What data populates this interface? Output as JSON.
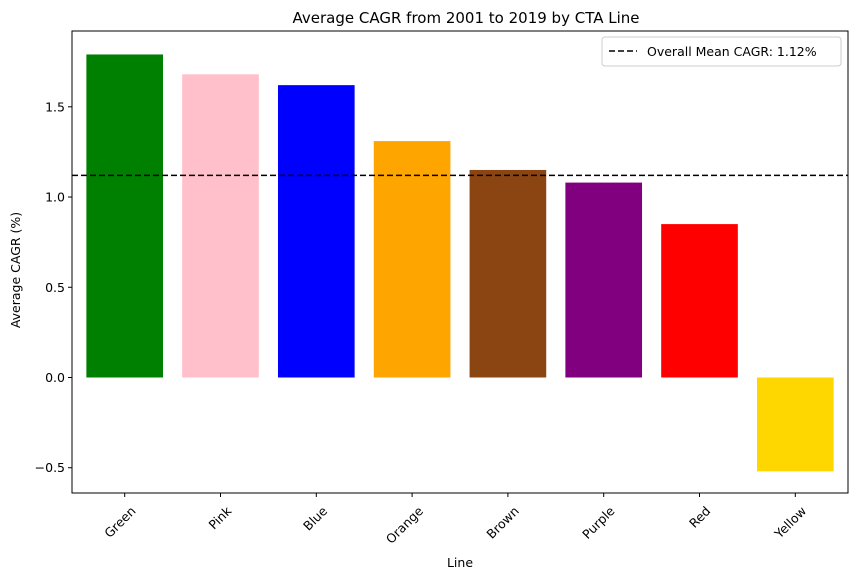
{
  "chart_data": {
    "type": "bar",
    "title": "Average CAGR from 2001 to 2019 by CTA Line",
    "xlabel": "Line",
    "ylabel": "Average CAGR (%)",
    "categories": [
      "Green",
      "Pink",
      "Blue",
      "Orange",
      "Brown",
      "Purple",
      "Red",
      "Yellow"
    ],
    "values": [
      1.79,
      1.68,
      1.62,
      1.31,
      1.15,
      1.08,
      0.85,
      -0.52
    ],
    "colors": [
      "#008000",
      "#ffc0cb",
      "#0000ff",
      "#ffa500",
      "#8b4513",
      "#800080",
      "#ff0000",
      "#ffd700"
    ],
    "ylim": [
      -0.64,
      1.92
    ],
    "yticks": [
      -0.5,
      0.0,
      0.5,
      1.0,
      1.5
    ],
    "ytick_labels": [
      "−0.5",
      "0.0",
      "0.5",
      "1.0",
      "1.5"
    ],
    "mean_line": {
      "value": 1.12,
      "label": "Overall Mean CAGR: 1.12%",
      "color": "#000000",
      "style": "dashed"
    },
    "legend_placement": "top-right",
    "grid": false
  }
}
